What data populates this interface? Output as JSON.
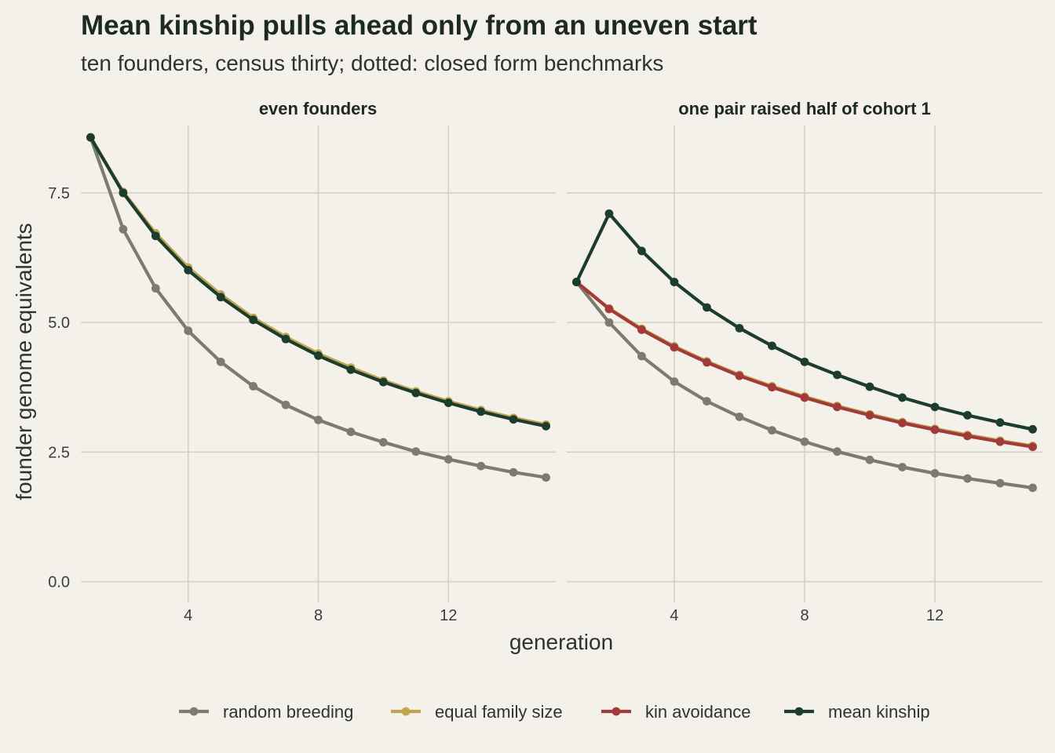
{
  "chart_data": {
    "type": "line",
    "title": "Mean kinship pulls ahead only from an uneven start",
    "subtitle": "ten founders, census thirty; dotted: closed form benchmarks",
    "xlabel": "generation",
    "ylabel": "founder genome equivalents",
    "xlim": [
      0.7,
      15.3
    ],
    "ylim": [
      -0.4,
      8.8
    ],
    "x_ticks": [
      4,
      8,
      12
    ],
    "y_ticks": [
      0.0,
      2.5,
      5.0,
      7.5
    ],
    "x_tick_labels": [
      "4",
      "8",
      "12"
    ],
    "y_tick_labels": [
      "0.0",
      "2.5",
      "5.0",
      "7.5"
    ],
    "grid": true,
    "legend_position": "bottom",
    "x": [
      1,
      2,
      3,
      4,
      5,
      6,
      7,
      8,
      9,
      10,
      11,
      12,
      13,
      14,
      15
    ],
    "legend": [
      {
        "key": "random",
        "label": "random breeding",
        "color": "#7d7b70"
      },
      {
        "key": "equal",
        "label": "equal family size",
        "color": "#bfa550"
      },
      {
        "key": "kin",
        "label": "kin avoidance",
        "color": "#a33a3a"
      },
      {
        "key": "mk",
        "label": "mean kinship",
        "color": "#1d3d2c"
      }
    ],
    "panels": [
      {
        "title": "even founders",
        "series": [
          {
            "key": "random",
            "values": [
              8.57,
              6.8,
              5.66,
              4.84,
              4.24,
              3.77,
              3.41,
              3.12,
              2.89,
              2.69,
              2.51,
              2.36,
              2.23,
              2.11,
              2.01
            ]
          },
          {
            "key": "equal",
            "values": [
              8.57,
              7.52,
              6.72,
              6.06,
              5.54,
              5.09,
              4.72,
              4.4,
              4.13,
              3.88,
              3.67,
              3.48,
              3.31,
              3.16,
              3.03
            ]
          },
          {
            "key": "mk",
            "values": [
              8.57,
              7.5,
              6.67,
              6.01,
              5.49,
              5.05,
              4.68,
              4.36,
              4.09,
              3.85,
              3.64,
              3.45,
              3.28,
              3.13,
              3.0
            ]
          }
        ]
      },
      {
        "title": "one pair raised half of cohort 1",
        "series": [
          {
            "key": "random",
            "values": [
              5.78,
              5.0,
              4.35,
              3.86,
              3.48,
              3.18,
              2.92,
              2.7,
              2.51,
              2.35,
              2.21,
              2.09,
              1.99,
              1.9,
              1.81
            ]
          },
          {
            "key": "equal",
            "values": [
              5.78,
              5.27,
              4.88,
              4.54,
              4.25,
              3.99,
              3.77,
              3.57,
              3.39,
              3.23,
              3.08,
              2.95,
              2.83,
              2.72,
              2.62
            ]
          },
          {
            "key": "kin",
            "values": [
              5.78,
              5.26,
              4.86,
              4.52,
              4.23,
              3.97,
              3.75,
              3.55,
              3.37,
              3.21,
              3.06,
              2.93,
              2.81,
              2.7,
              2.6
            ]
          },
          {
            "key": "mk",
            "values": [
              5.78,
              7.1,
              6.38,
              5.78,
              5.29,
              4.89,
              4.55,
              4.24,
              3.99,
              3.76,
              3.55,
              3.37,
              3.21,
              3.07,
              2.94
            ]
          }
        ]
      }
    ]
  }
}
